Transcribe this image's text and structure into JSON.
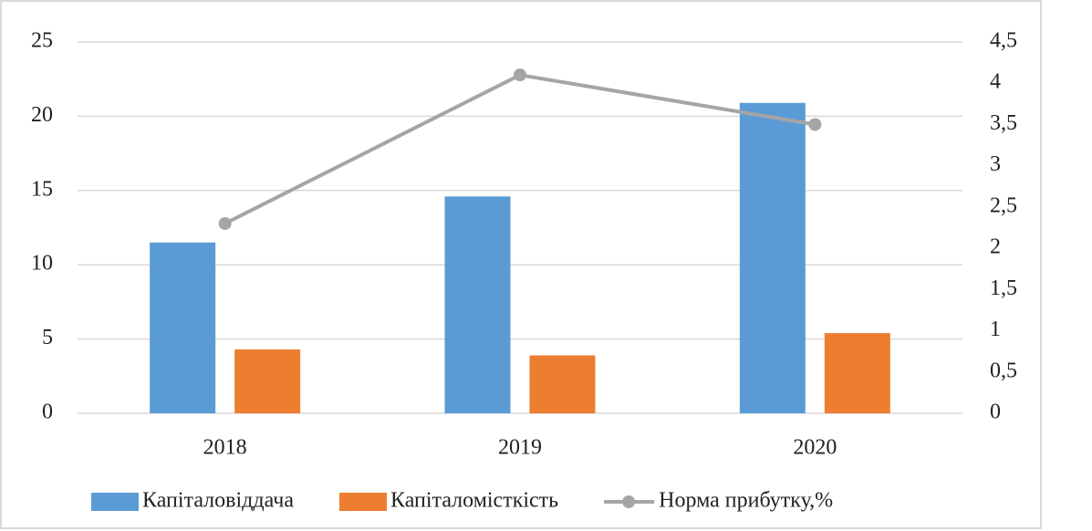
{
  "chart_data": {
    "type": "bar",
    "categories": [
      "2018",
      "2019",
      "2020"
    ],
    "series": [
      {
        "name": "Капіталовіддача",
        "color": "#5b9bd5",
        "type": "bar",
        "values": [
          11.5,
          14.6,
          20.9
        ]
      },
      {
        "name": "Капіталомісткість",
        "color": "#ed7d31",
        "type": "bar",
        "values": [
          4.3,
          3.9,
          5.4
        ]
      },
      {
        "name": "Норма прибутку,%",
        "color": "#a5a5a5",
        "type": "line",
        "axis": "y2",
        "values": [
          2.3,
          4.1,
          3.5
        ]
      }
    ],
    "ylim": [
      0,
      25
    ],
    "yticks": [
      0,
      5,
      10,
      15,
      20,
      25
    ],
    "y2lim": [
      0,
      4.5
    ],
    "y2ticks": [
      0,
      {
        "value": 0.5,
        "label": "0,5"
      },
      1,
      {
        "value": 1.5,
        "label": "1,5"
      },
      2,
      {
        "value": 2.5,
        "label": "2,5"
      },
      3,
      {
        "value": 3.5,
        "label": "3,5"
      },
      4,
      {
        "value": 4.5,
        "label": "4,5"
      }
    ],
    "grid": true,
    "legend": "bottom"
  }
}
